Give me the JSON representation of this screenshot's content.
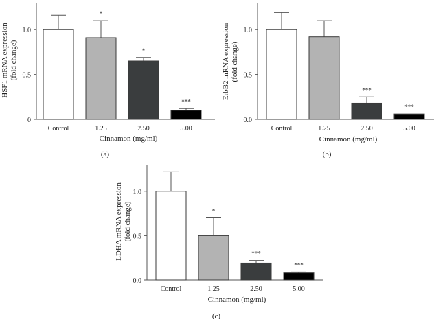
{
  "chart_data": [
    {
      "type": "bar",
      "panel_label": "(a)",
      "categories": [
        "Control",
        "1.25",
        "2.50",
        "5.00"
      ],
      "values": [
        1.0,
        0.91,
        0.65,
        0.1
      ],
      "errors": [
        0.16,
        0.19,
        0.04,
        0.02
      ],
      "significance": [
        "",
        "*",
        "*",
        "***"
      ],
      "bar_colors": [
        "#ffffff",
        "#b3b3b3",
        "#3a3d3e",
        "#000000"
      ],
      "xlabel": "Cinnamon (mg/ml)",
      "ylabel": [
        "HSF1 mRNA expression",
        "(fold change)"
      ],
      "ylim": [
        0,
        1.3
      ],
      "yticks": [
        0,
        0.5,
        1.0
      ],
      "ytick_labels": [
        "0",
        "0.5",
        "1.0"
      ],
      "grid": false,
      "legend": "none"
    },
    {
      "type": "bar",
      "panel_label": "(b)",
      "categories": [
        "Control",
        "1.25",
        "2.50",
        "5.00"
      ],
      "values": [
        1.0,
        0.92,
        0.18,
        0.06
      ],
      "errors": [
        0.19,
        0.18,
        0.07,
        0.0
      ],
      "significance": [
        "",
        "",
        "***",
        "***"
      ],
      "bar_colors": [
        "#ffffff",
        "#b3b3b3",
        "#3a3d3e",
        "#000000"
      ],
      "xlabel": "Cinnamon (mg/ml)",
      "ylabel": [
        "ErbB2 mRNA expression",
        "(fold change)"
      ],
      "ylim": [
        0,
        1.3
      ],
      "yticks": [
        0,
        0.5,
        1.0
      ],
      "ytick_labels": [
        "0.0",
        "0.5",
        "1.0"
      ],
      "grid": false,
      "legend": "none"
    },
    {
      "type": "bar",
      "panel_label": "(c)",
      "categories": [
        "Control",
        "1.25",
        "2.50",
        "5.00"
      ],
      "values": [
        1.0,
        0.5,
        0.19,
        0.08
      ],
      "errors": [
        0.22,
        0.2,
        0.03,
        0.01
      ],
      "significance": [
        "",
        "*",
        "***",
        "***"
      ],
      "bar_colors": [
        "#ffffff",
        "#b3b3b3",
        "#3a3d3e",
        "#000000"
      ],
      "xlabel": "Cinnamon (mg/ml)",
      "ylabel": [
        "LDHA mRNA expression",
        "(fold change)"
      ],
      "ylim": [
        0,
        1.3
      ],
      "yticks": [
        0,
        0.5,
        1.0
      ],
      "ytick_labels": [
        "0.0",
        "0.5",
        "1.0"
      ],
      "grid": false,
      "legend": "none"
    }
  ]
}
